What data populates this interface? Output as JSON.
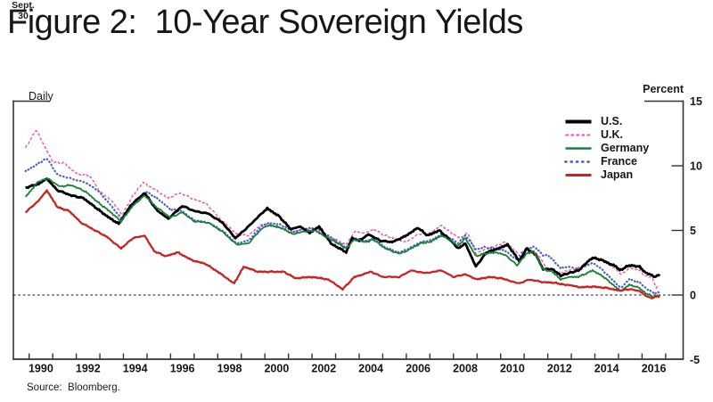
{
  "header": {
    "title": "Figure 2:  10-Year Sovereign Yields"
  },
  "footer": {
    "source": "Source:  Bloomberg."
  },
  "chart_data": {
    "type": "line",
    "title": "Figure 2: 10-Year Sovereign Yields",
    "frequency_label": "Daily",
    "ylabel": "Percent",
    "xlabel": "",
    "ylim": [
      -5,
      15
    ],
    "y_ticks": [
      15,
      10,
      5,
      0,
      -5
    ],
    "x_tick_years": [
      1990,
      1992,
      1994,
      1996,
      1998,
      2000,
      2002,
      2004,
      2006,
      2008,
      2010,
      2012,
      2014,
      2016
    ],
    "x_minor_tick_start": 1990,
    "x_minor_tick_end": 2017,
    "x_range": [
      1989.85,
      2016.75
    ],
    "zero_line": true,
    "grid": false,
    "legend_position": "top-right",
    "end_date_annotation": {
      "line1": "Sept.",
      "line2": "30"
    },
    "series": [
      {
        "name": "U.K.",
        "color": "#e8569b",
        "style": "dashed",
        "points": [
          [
            1989.85,
            11.4
          ],
          [
            1990.3,
            12.8
          ],
          [
            1990.6,
            11.7
          ],
          [
            1991.0,
            10.3
          ],
          [
            1991.5,
            10.2
          ],
          [
            1992.0,
            9.4
          ],
          [
            1992.6,
            9.2
          ],
          [
            1993.0,
            8.0
          ],
          [
            1993.5,
            7.3
          ],
          [
            1993.95,
            6.2
          ],
          [
            1994.4,
            7.7
          ],
          [
            1994.85,
            8.7
          ],
          [
            1995.3,
            8.2
          ],
          [
            1995.9,
            7.5
          ],
          [
            1996.4,
            7.9
          ],
          [
            1997.0,
            7.4
          ],
          [
            1997.5,
            7.1
          ],
          [
            1998.0,
            6.1
          ],
          [
            1998.8,
            4.7
          ],
          [
            1999.3,
            4.6
          ],
          [
            1999.8,
            5.4
          ],
          [
            2000.1,
            5.5
          ],
          [
            2000.6,
            5.2
          ],
          [
            2001.2,
            4.8
          ],
          [
            2001.6,
            5.1
          ],
          [
            2002.1,
            5.1
          ],
          [
            2002.6,
            4.6
          ],
          [
            2003.0,
            4.3
          ],
          [
            2003.45,
            3.9
          ],
          [
            2003.8,
            4.9
          ],
          [
            2004.3,
            4.8
          ],
          [
            2004.6,
            5.1
          ],
          [
            2005.1,
            4.6
          ],
          [
            2005.6,
            4.3
          ],
          [
            2006.0,
            4.1
          ],
          [
            2006.5,
            4.7
          ],
          [
            2007.0,
            4.8
          ],
          [
            2007.5,
            5.4
          ],
          [
            2007.9,
            4.8
          ],
          [
            2008.3,
            4.4
          ],
          [
            2008.6,
            4.8
          ],
          [
            2008.97,
            3.2
          ],
          [
            2009.3,
            3.5
          ],
          [
            2009.8,
            3.8
          ],
          [
            2010.2,
            4.1
          ],
          [
            2010.8,
            3.1
          ],
          [
            2011.1,
            3.7
          ],
          [
            2011.6,
            3.1
          ],
          [
            2011.95,
            2.1
          ],
          [
            2012.5,
            1.7
          ],
          [
            2012.9,
            1.9
          ],
          [
            2013.3,
            2.1
          ],
          [
            2013.9,
            2.9
          ],
          [
            2014.3,
            2.7
          ],
          [
            2014.9,
            2.0
          ],
          [
            2015.1,
            1.6
          ],
          [
            2015.5,
            2.1
          ],
          [
            2015.9,
            1.9
          ],
          [
            2016.1,
            1.5
          ],
          [
            2016.4,
            1.4
          ],
          [
            2016.6,
            0.6
          ],
          [
            2016.75,
            0.75
          ]
        ]
      },
      {
        "name": "France",
        "color": "#4a5ed8",
        "style": "dotted",
        "points": [
          [
            1989.85,
            9.6
          ],
          [
            1990.4,
            10.2
          ],
          [
            1990.75,
            10.6
          ],
          [
            1991.2,
            9.3
          ],
          [
            1991.8,
            9.0
          ],
          [
            1992.4,
            8.7
          ],
          [
            1992.9,
            8.1
          ],
          [
            1993.4,
            7.1
          ],
          [
            1993.95,
            5.8
          ],
          [
            1994.4,
            7.2
          ],
          [
            1995.0,
            8.0
          ],
          [
            1995.5,
            7.4
          ],
          [
            1996.0,
            6.6
          ],
          [
            1996.5,
            6.5
          ],
          [
            1997.0,
            5.8
          ],
          [
            1997.6,
            5.6
          ],
          [
            1998.2,
            5.0
          ],
          [
            1998.8,
            4.0
          ],
          [
            1999.3,
            4.2
          ],
          [
            1999.9,
            5.4
          ],
          [
            2000.2,
            5.6
          ],
          [
            2000.7,
            5.4
          ],
          [
            2001.2,
            4.9
          ],
          [
            2001.6,
            5.1
          ],
          [
            2002.1,
            5.2
          ],
          [
            2002.7,
            4.6
          ],
          [
            2003.0,
            4.2
          ],
          [
            2003.45,
            3.7
          ],
          [
            2003.8,
            4.4
          ],
          [
            2004.3,
            4.2
          ],
          [
            2004.6,
            4.4
          ],
          [
            2005.1,
            3.7
          ],
          [
            2005.7,
            3.3
          ],
          [
            2006.0,
            3.5
          ],
          [
            2006.6,
            4.1
          ],
          [
            2007.0,
            4.2
          ],
          [
            2007.5,
            4.7
          ],
          [
            2007.9,
            4.4
          ],
          [
            2008.2,
            4.0
          ],
          [
            2008.5,
            4.6
          ],
          [
            2008.97,
            3.5
          ],
          [
            2009.3,
            3.7
          ],
          [
            2009.8,
            3.6
          ],
          [
            2010.2,
            3.4
          ],
          [
            2010.7,
            2.7
          ],
          [
            2011.1,
            3.6
          ],
          [
            2011.45,
            3.7
          ],
          [
            2011.8,
            3.1
          ],
          [
            2012.0,
            3.1
          ],
          [
            2012.55,
            2.1
          ],
          [
            2012.9,
            2.2
          ],
          [
            2013.3,
            2.0
          ],
          [
            2013.9,
            2.5
          ],
          [
            2014.3,
            2.0
          ],
          [
            2014.9,
            0.9
          ],
          [
            2015.1,
            0.55
          ],
          [
            2015.45,
            1.2
          ],
          [
            2015.9,
            0.95
          ],
          [
            2016.1,
            0.6
          ],
          [
            2016.5,
            0.15
          ],
          [
            2016.75,
            0.2
          ]
        ]
      },
      {
        "name": "U.S.",
        "color": "#000000",
        "style": "solid-thick",
        "points": [
          [
            1989.85,
            8.3
          ],
          [
            1990.4,
            8.6
          ],
          [
            1990.75,
            9.0
          ],
          [
            1991.2,
            8.1
          ],
          [
            1991.8,
            7.7
          ],
          [
            1992.3,
            7.5
          ],
          [
            1992.8,
            6.8
          ],
          [
            1993.3,
            6.1
          ],
          [
            1993.8,
            5.5
          ],
          [
            1994.3,
            6.9
          ],
          [
            1994.9,
            7.9
          ],
          [
            1995.4,
            6.6
          ],
          [
            1995.9,
            5.9
          ],
          [
            1996.5,
            6.9
          ],
          [
            1997.0,
            6.5
          ],
          [
            1997.6,
            6.3
          ],
          [
            1998.2,
            5.6
          ],
          [
            1998.75,
            4.4
          ],
          [
            1999.3,
            5.3
          ],
          [
            1999.8,
            6.2
          ],
          [
            2000.1,
            6.7
          ],
          [
            2000.6,
            6.1
          ],
          [
            2001.1,
            5.1
          ],
          [
            2001.5,
            5.3
          ],
          [
            2001.9,
            4.8
          ],
          [
            2002.3,
            5.3
          ],
          [
            2002.8,
            4.0
          ],
          [
            2003.45,
            3.3
          ],
          [
            2003.7,
            4.4
          ],
          [
            2004.0,
            4.2
          ],
          [
            2004.4,
            4.7
          ],
          [
            2004.9,
            4.2
          ],
          [
            2005.4,
            4.1
          ],
          [
            2005.9,
            4.5
          ],
          [
            2006.5,
            5.2
          ],
          [
            2006.9,
            4.6
          ],
          [
            2007.4,
            5.0
          ],
          [
            2007.9,
            4.2
          ],
          [
            2008.2,
            3.6
          ],
          [
            2008.5,
            4.0
          ],
          [
            2008.95,
            2.2
          ],
          [
            2009.4,
            3.3
          ],
          [
            2009.9,
            3.6
          ],
          [
            2010.3,
            3.9
          ],
          [
            2010.8,
            2.6
          ],
          [
            2011.1,
            3.6
          ],
          [
            2011.5,
            3.1
          ],
          [
            2011.8,
            2.0
          ],
          [
            2012.2,
            2.0
          ],
          [
            2012.55,
            1.5
          ],
          [
            2012.9,
            1.7
          ],
          [
            2013.3,
            1.9
          ],
          [
            2013.9,
            2.9
          ],
          [
            2014.3,
            2.7
          ],
          [
            2014.9,
            2.2
          ],
          [
            2015.05,
            1.9
          ],
          [
            2015.45,
            2.3
          ],
          [
            2015.9,
            2.2
          ],
          [
            2016.1,
            1.8
          ],
          [
            2016.53,
            1.4
          ],
          [
            2016.75,
            1.6
          ]
        ]
      },
      {
        "name": "Germany",
        "color": "#17803a",
        "style": "solid",
        "points": [
          [
            1989.85,
            7.6
          ],
          [
            1990.4,
            8.8
          ],
          [
            1990.8,
            9.0
          ],
          [
            1991.3,
            8.4
          ],
          [
            1991.8,
            8.5
          ],
          [
            1992.4,
            8.0
          ],
          [
            1992.9,
            7.2
          ],
          [
            1993.4,
            6.5
          ],
          [
            1993.9,
            5.7
          ],
          [
            1994.4,
            6.9
          ],
          [
            1994.9,
            7.7
          ],
          [
            1995.4,
            6.8
          ],
          [
            1996.0,
            6.0
          ],
          [
            1996.5,
            6.4
          ],
          [
            1997.0,
            5.7
          ],
          [
            1997.6,
            5.6
          ],
          [
            1998.2,
            4.9
          ],
          [
            1998.8,
            3.9
          ],
          [
            1999.3,
            4.0
          ],
          [
            1999.9,
            5.2
          ],
          [
            2000.2,
            5.4
          ],
          [
            2000.7,
            5.2
          ],
          [
            2001.2,
            4.7
          ],
          [
            2001.6,
            4.9
          ],
          [
            2002.1,
            5.0
          ],
          [
            2002.7,
            4.4
          ],
          [
            2003.0,
            4.1
          ],
          [
            2003.45,
            3.6
          ],
          [
            2003.8,
            4.3
          ],
          [
            2004.3,
            4.1
          ],
          [
            2004.6,
            4.3
          ],
          [
            2005.1,
            3.6
          ],
          [
            2005.7,
            3.2
          ],
          [
            2006.0,
            3.4
          ],
          [
            2006.6,
            4.0
          ],
          [
            2007.0,
            4.1
          ],
          [
            2007.5,
            4.6
          ],
          [
            2007.9,
            4.2
          ],
          [
            2008.2,
            3.8
          ],
          [
            2008.5,
            4.4
          ],
          [
            2008.97,
            3.0
          ],
          [
            2009.3,
            3.2
          ],
          [
            2009.8,
            3.3
          ],
          [
            2010.2,
            3.1
          ],
          [
            2010.7,
            2.3
          ],
          [
            2011.1,
            3.2
          ],
          [
            2011.4,
            3.4
          ],
          [
            2011.8,
            2.0
          ],
          [
            2012.2,
            1.8
          ],
          [
            2012.55,
            1.2
          ],
          [
            2012.9,
            1.4
          ],
          [
            2013.3,
            1.4
          ],
          [
            2013.9,
            1.9
          ],
          [
            2014.3,
            1.5
          ],
          [
            2014.9,
            0.6
          ],
          [
            2015.1,
            0.3
          ],
          [
            2015.45,
            0.8
          ],
          [
            2015.9,
            0.55
          ],
          [
            2016.1,
            0.2
          ],
          [
            2016.5,
            -0.15
          ],
          [
            2016.75,
            -0.1
          ]
        ]
      },
      {
        "name": "Japan",
        "color": "#c92423",
        "style": "solid-medium",
        "points": [
          [
            1989.85,
            6.4
          ],
          [
            1990.4,
            7.3
          ],
          [
            1990.75,
            8.1
          ],
          [
            1991.2,
            6.8
          ],
          [
            1991.7,
            6.5
          ],
          [
            1992.2,
            5.6
          ],
          [
            1992.8,
            5.0
          ],
          [
            1993.3,
            4.5
          ],
          [
            1993.9,
            3.6
          ],
          [
            1994.4,
            4.4
          ],
          [
            1994.9,
            4.6
          ],
          [
            1995.3,
            3.4
          ],
          [
            1995.8,
            3.0
          ],
          [
            1996.3,
            3.3
          ],
          [
            1996.9,
            2.7
          ],
          [
            1997.5,
            2.4
          ],
          [
            1998.0,
            1.8
          ],
          [
            1998.7,
            0.9
          ],
          [
            1999.1,
            2.2
          ],
          [
            1999.7,
            1.8
          ],
          [
            2000.2,
            1.8
          ],
          [
            2000.8,
            1.8
          ],
          [
            2001.3,
            1.3
          ],
          [
            2002.0,
            1.4
          ],
          [
            2002.7,
            1.2
          ],
          [
            2003.3,
            0.45
          ],
          [
            2003.8,
            1.4
          ],
          [
            2004.5,
            1.8
          ],
          [
            2005.0,
            1.4
          ],
          [
            2005.7,
            1.4
          ],
          [
            2006.2,
            1.9
          ],
          [
            2006.8,
            1.7
          ],
          [
            2007.5,
            1.9
          ],
          [
            2008.0,
            1.4
          ],
          [
            2008.5,
            1.6
          ],
          [
            2008.97,
            1.2
          ],
          [
            2009.5,
            1.4
          ],
          [
            2010.0,
            1.3
          ],
          [
            2010.8,
            0.9
          ],
          [
            2011.2,
            1.2
          ],
          [
            2011.8,
            1.0
          ],
          [
            2012.3,
            0.95
          ],
          [
            2012.7,
            0.8
          ],
          [
            2013.0,
            0.75
          ],
          [
            2013.35,
            0.6
          ],
          [
            2013.9,
            0.65
          ],
          [
            2014.5,
            0.55
          ],
          [
            2015.0,
            0.35
          ],
          [
            2015.5,
            0.45
          ],
          [
            2015.9,
            0.3
          ],
          [
            2016.1,
            0.0
          ],
          [
            2016.4,
            -0.25
          ],
          [
            2016.65,
            -0.07
          ],
          [
            2016.75,
            -0.08
          ]
        ]
      }
    ]
  }
}
